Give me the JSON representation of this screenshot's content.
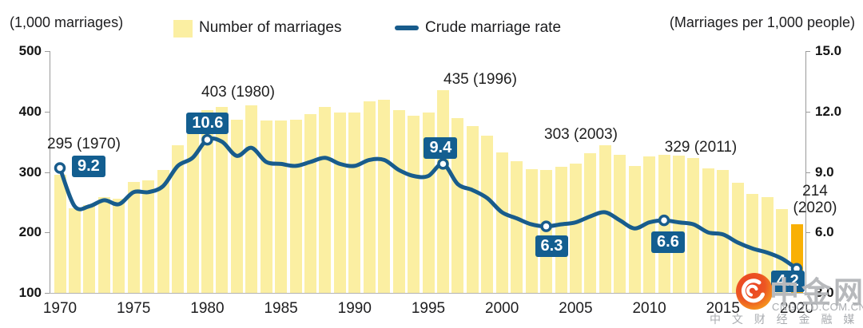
{
  "header": {
    "left_axis_label": "(1,000 marriages)",
    "right_axis_label": "(Marriages per 1,000 people)",
    "legend": [
      {
        "label": "Number of marriages",
        "type": "bar"
      },
      {
        "label": "Crude marriage rate",
        "type": "line"
      }
    ]
  },
  "chart_data": {
    "type": "bar+line",
    "x_years": {
      "start": 1970,
      "end": 2020,
      "step": 1
    },
    "x_tick_labels": [
      "1970",
      "1975",
      "1980",
      "1985",
      "1990",
      "1995",
      "2000",
      "2005",
      "2010",
      "2015",
      "2020"
    ],
    "series": [
      {
        "name": "Number of marriages",
        "type": "bar",
        "axis": "left",
        "unit": "1,000 marriages",
        "values": [
          295,
          240,
          245,
          259,
          256,
          283,
          286,
          303,
          344,
          363,
          403,
          407,
          387,
          410,
          385,
          385,
          386,
          396,
          407,
          399,
          399,
          417,
          420,
          403,
          393,
          398,
          435,
          389,
          376,
          360,
          332,
          318,
          305,
          303,
          309,
          314,
          331,
          344,
          328,
          310,
          326,
          329,
          327,
          323,
          306,
          303,
          282,
          264,
          258,
          239,
          214
        ]
      },
      {
        "name": "Crude marriage rate",
        "type": "line",
        "axis": "right",
        "unit": "marriages per 1,000 people",
        "values": [
          9.2,
          7.3,
          7.3,
          7.6,
          7.4,
          8.0,
          8.0,
          8.3,
          9.3,
          9.7,
          10.6,
          10.5,
          9.8,
          10.2,
          9.5,
          9.4,
          9.3,
          9.5,
          9.7,
          9.4,
          9.3,
          9.6,
          9.6,
          9.1,
          8.8,
          8.8,
          9.4,
          8.4,
          8.1,
          7.7,
          7.0,
          6.7,
          6.4,
          6.3,
          6.4,
          6.5,
          6.8,
          7.0,
          6.6,
          6.2,
          6.5,
          6.6,
          6.5,
          6.4,
          6.0,
          5.9,
          5.5,
          5.2,
          5.0,
          4.7,
          4.2
        ]
      }
    ],
    "left_axis": {
      "ticks": [
        "500",
        "400",
        "300",
        "200",
        "100"
      ],
      "min": 100,
      "max": 500
    },
    "right_axis": {
      "ticks": [
        "15.0",
        "12.0",
        "9.0",
        "6.0",
        "3.0"
      ],
      "min": 3.0,
      "max": 15.0
    },
    "annotations": [
      {
        "year": 1970,
        "bar_label": "295 (1970)",
        "rate_label": "9.2"
      },
      {
        "year": 1980,
        "bar_label": "403 (1980)",
        "rate_label": "10.6"
      },
      {
        "year": 1996,
        "bar_label": "435 (1996)",
        "rate_label": "9.4"
      },
      {
        "year": 2003,
        "bar_label": "303 (2003)",
        "rate_label": "6.3"
      },
      {
        "year": 2011,
        "bar_label": "329 (2011)",
        "rate_label": "6.6"
      },
      {
        "year": 2020,
        "bar_label": "214 (2020)",
        "rate_label": "4.2"
      }
    ],
    "highlight_year": 2020,
    "colors": {
      "bar": "#FBEFA2",
      "bar_highlight": "#F9B005",
      "line": "#185C8C",
      "badge_bg": "#135E90",
      "badge_text": "#FFFFFF"
    },
    "grid": false,
    "legend_position": "top"
  },
  "watermark": {
    "name": "中金网",
    "domain": "CNGOLD.COM.CN",
    "tagline": "中 文 财 经 金 融 媒 体"
  }
}
